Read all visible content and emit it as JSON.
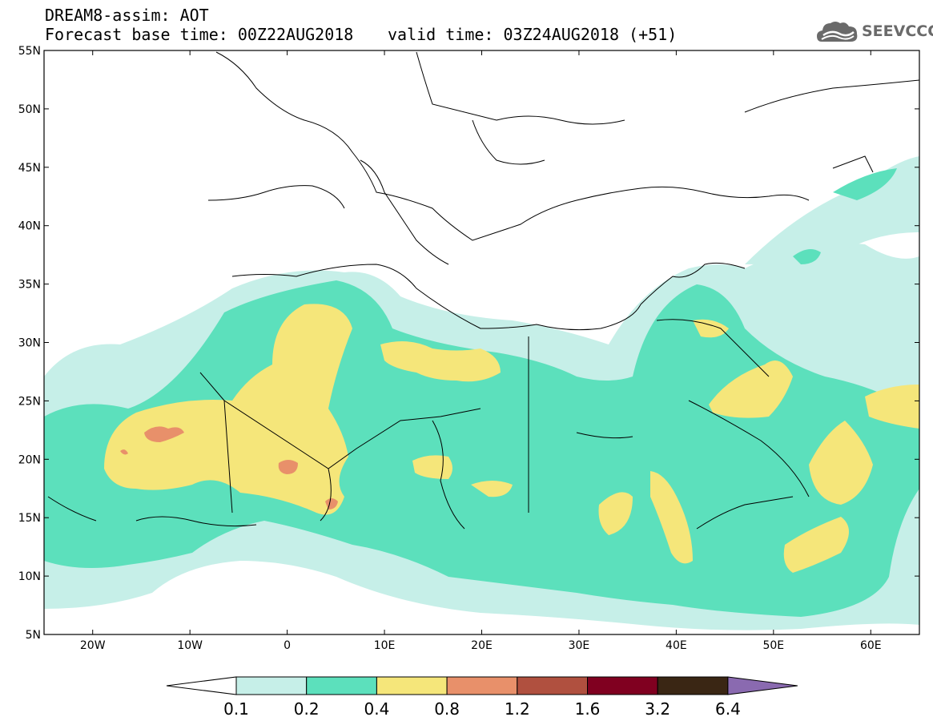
{
  "header": {
    "title": "DREAM8-assim: AOT",
    "base_time": "Forecast base time: 00Z22AUG2018",
    "valid_time": "valid time: 03Z24AUG2018 (+51)"
  },
  "logo": {
    "text": "SEEVCCC",
    "icon": "cloud-icon"
  },
  "axes": {
    "lon_ticks": [
      "20W",
      "10W",
      "0",
      "10E",
      "20E",
      "30E",
      "40E",
      "50E",
      "60E"
    ],
    "lon_values": [
      -20,
      -10,
      0,
      10,
      20,
      30,
      40,
      50,
      60
    ],
    "lat_ticks": [
      "55N",
      "50N",
      "45N",
      "40N",
      "35N",
      "30N",
      "25N",
      "20N",
      "15N",
      "10N",
      "5N"
    ],
    "lat_values": [
      55,
      50,
      45,
      40,
      35,
      30,
      25,
      20,
      15,
      10,
      5
    ],
    "lon_range": [
      -25,
      65
    ],
    "lat_range": [
      5,
      55
    ]
  },
  "colorbar": {
    "labels": [
      "0.1",
      "0.2",
      "0.4",
      "0.8",
      "1.2",
      "1.6",
      "3.2",
      "6.4"
    ],
    "colors": [
      "#c6efe8",
      "#5ce0bc",
      "#f5e67a",
      "#e8906a",
      "#b0503f",
      "#800020",
      "#3a2614",
      "#8a6ab0"
    ]
  }
}
